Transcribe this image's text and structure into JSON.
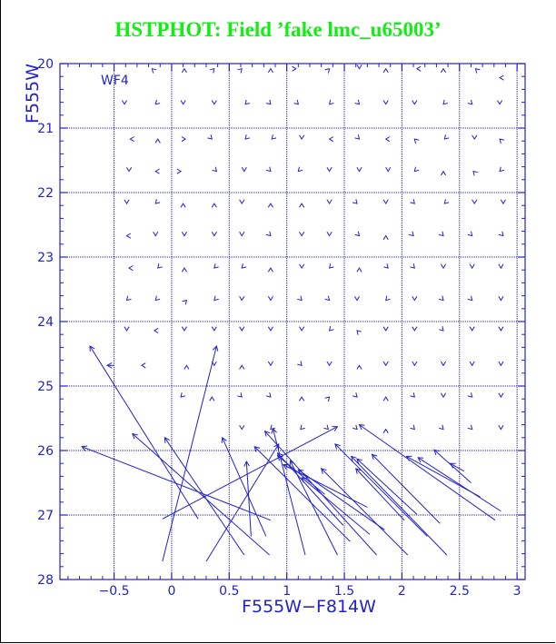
{
  "title": "HSTPHOT: Field ’fake lmc_u65003’",
  "chart_data": {
    "type": "scatter",
    "title": "HSTPHOT: Field ’fake lmc_u65003’",
    "xlabel": "F555W−F814W",
    "ylabel": "F555W",
    "panel_label": "WF4",
    "xlim": [
      -0.97,
      3.07
    ],
    "ylim": [
      28,
      20
    ],
    "xticks": [
      -0.5,
      0,
      0.5,
      1,
      1.5,
      2,
      2.5,
      3
    ],
    "xtick_labels": [
      "−0.5",
      "0",
      "0.5",
      "1",
      "1.5",
      "2",
      "2.5",
      "3"
    ],
    "yticks": [
      20,
      21,
      22,
      23,
      24,
      25,
      26,
      27,
      28
    ],
    "ytick_labels": [
      "20",
      "21",
      "22",
      "23",
      "24",
      "25",
      "26",
      "27",
      "28"
    ],
    "grid": true,
    "colors": {
      "title": "#11ee11",
      "plot": "#2222cc",
      "frame": "#000000"
    },
    "marker": "V-shaped arrowhead at each star's measured position",
    "arrowheads": [
      [
        -0.17,
        20.08,
        "NW"
      ],
      [
        0.11,
        20.08,
        "N"
      ],
      [
        0.37,
        20.08,
        "NE"
      ],
      [
        0.61,
        20.08,
        "NE"
      ],
      [
        0.86,
        20.08,
        "N"
      ],
      [
        1.08,
        20.08,
        "E"
      ],
      [
        1.37,
        20.08,
        "NE"
      ],
      [
        1.63,
        20.08,
        "S"
      ],
      [
        1.86,
        20.08,
        "N"
      ],
      [
        2.13,
        20.08,
        "W"
      ],
      [
        2.36,
        20.08,
        "N"
      ],
      [
        2.64,
        20.08,
        "NW"
      ],
      [
        2.85,
        20.22,
        "W"
      ],
      [
        -0.41,
        20.63,
        "S"
      ],
      [
        -0.14,
        20.63,
        "SW"
      ],
      [
        0.1,
        20.63,
        "S"
      ],
      [
        0.37,
        20.63,
        "S"
      ],
      [
        0.64,
        20.63,
        "SW"
      ],
      [
        0.86,
        20.63,
        "SE"
      ],
      [
        1.1,
        20.63,
        "SE"
      ],
      [
        1.37,
        20.63,
        "SW"
      ],
      [
        1.63,
        20.63,
        "SE"
      ],
      [
        1.86,
        20.63,
        "S"
      ],
      [
        2.11,
        20.63,
        "S"
      ],
      [
        2.36,
        20.63,
        "SW"
      ],
      [
        2.61,
        20.63,
        "SE"
      ],
      [
        2.85,
        20.63,
        "S"
      ],
      [
        -0.36,
        21.17,
        "W"
      ],
      [
        -0.12,
        21.17,
        "N"
      ],
      [
        0.12,
        21.17,
        "E"
      ],
      [
        0.35,
        21.17,
        "SE"
      ],
      [
        0.64,
        21.17,
        "SW"
      ],
      [
        0.87,
        21.17,
        "SW"
      ],
      [
        1.13,
        21.17,
        "S"
      ],
      [
        1.37,
        21.17,
        "W"
      ],
      [
        1.63,
        21.17,
        "SE"
      ],
      [
        1.86,
        21.17,
        "W"
      ],
      [
        2.11,
        21.17,
        "NW"
      ],
      [
        2.37,
        21.17,
        "SW"
      ],
      [
        2.63,
        21.17,
        "S"
      ],
      [
        2.85,
        21.17,
        "NW"
      ],
      [
        -0.37,
        21.67,
        "S"
      ],
      [
        -0.14,
        21.67,
        "W"
      ],
      [
        0.08,
        21.67,
        "E"
      ],
      [
        0.39,
        21.67,
        "SE"
      ],
      [
        0.63,
        21.67,
        "S"
      ],
      [
        0.86,
        21.67,
        "SE"
      ],
      [
        1.1,
        21.67,
        "SW"
      ],
      [
        1.37,
        21.67,
        "S"
      ],
      [
        1.63,
        21.67,
        "S"
      ],
      [
        1.88,
        21.67,
        "S"
      ],
      [
        2.11,
        21.67,
        "SW"
      ],
      [
        2.36,
        21.67,
        "N"
      ],
      [
        2.62,
        21.67,
        "NW"
      ],
      [
        2.85,
        21.67,
        "SW"
      ],
      [
        -0.39,
        22.17,
        "S"
      ],
      [
        -0.14,
        22.17,
        "SW"
      ],
      [
        0.1,
        22.17,
        "N"
      ],
      [
        0.37,
        22.17,
        "N"
      ],
      [
        0.61,
        22.17,
        "S"
      ],
      [
        0.86,
        22.17,
        "N"
      ],
      [
        1.13,
        22.17,
        "N"
      ],
      [
        1.37,
        22.17,
        "S"
      ],
      [
        1.61,
        22.17,
        "SE"
      ],
      [
        1.86,
        22.17,
        "S"
      ],
      [
        2.11,
        22.17,
        "SE"
      ],
      [
        2.37,
        22.17,
        "SW"
      ],
      [
        2.63,
        22.17,
        "S"
      ],
      [
        2.88,
        22.17,
        "S"
      ],
      [
        -0.39,
        22.67,
        "W"
      ],
      [
        -0.14,
        22.67,
        "S"
      ],
      [
        0.11,
        22.67,
        "S"
      ],
      [
        0.37,
        22.67,
        "S"
      ],
      [
        0.61,
        22.67,
        "S"
      ],
      [
        0.86,
        22.67,
        "SE"
      ],
      [
        1.13,
        22.67,
        "S"
      ],
      [
        1.37,
        22.67,
        "S"
      ],
      [
        1.63,
        22.67,
        "SE"
      ],
      [
        1.86,
        22.67,
        "N"
      ],
      [
        2.1,
        22.67,
        "SE"
      ],
      [
        2.36,
        22.67,
        "SE"
      ],
      [
        2.61,
        22.67,
        "SE"
      ],
      [
        2.88,
        22.67,
        "SE"
      ],
      [
        -0.37,
        23.17,
        "W"
      ],
      [
        -0.12,
        23.17,
        "SW"
      ],
      [
        0.11,
        23.17,
        "N"
      ],
      [
        0.37,
        23.17,
        "SW"
      ],
      [
        0.61,
        23.17,
        "SW"
      ],
      [
        0.86,
        23.17,
        "N"
      ],
      [
        1.13,
        23.17,
        "S"
      ],
      [
        1.37,
        23.17,
        "SW"
      ],
      [
        1.63,
        23.17,
        "N"
      ],
      [
        1.88,
        23.17,
        "SE"
      ],
      [
        2.11,
        23.17,
        "SE"
      ],
      [
        2.36,
        23.17,
        "S"
      ],
      [
        2.61,
        23.17,
        "S"
      ],
      [
        2.86,
        23.17,
        "S"
      ],
      [
        -0.39,
        23.67,
        "SW"
      ],
      [
        -0.14,
        23.67,
        "SW"
      ],
      [
        0.13,
        23.67,
        "NE"
      ],
      [
        0.37,
        23.67,
        "SW"
      ],
      [
        0.61,
        23.67,
        "S"
      ],
      [
        0.86,
        23.67,
        "S"
      ],
      [
        1.13,
        23.67,
        "SE"
      ],
      [
        1.37,
        23.67,
        "SE"
      ],
      [
        1.61,
        23.67,
        "S"
      ],
      [
        1.86,
        23.67,
        "SW"
      ],
      [
        2.11,
        23.67,
        "S"
      ],
      [
        2.36,
        23.67,
        "SE"
      ],
      [
        2.61,
        23.67,
        "SE"
      ],
      [
        2.86,
        23.67,
        "S"
      ],
      [
        -0.39,
        24.14,
        "S"
      ],
      [
        -0.15,
        24.14,
        "W"
      ],
      [
        0.11,
        24.14,
        "S"
      ],
      [
        0.37,
        24.14,
        "S"
      ],
      [
        0.61,
        24.14,
        "S"
      ],
      [
        0.86,
        24.14,
        "S"
      ],
      [
        1.13,
        24.14,
        "S"
      ],
      [
        1.37,
        24.14,
        "SW"
      ],
      [
        1.61,
        24.14,
        "NW"
      ],
      [
        1.86,
        24.14,
        "S"
      ],
      [
        2.11,
        24.14,
        "S"
      ],
      [
        2.36,
        24.14,
        "SE"
      ],
      [
        2.61,
        24.14,
        "S"
      ],
      [
        2.86,
        24.14,
        "S"
      ],
      [
        -0.26,
        24.68,
        "W"
      ],
      [
        0.13,
        24.68,
        "N"
      ],
      [
        0.37,
        24.68,
        "S"
      ],
      [
        0.61,
        24.68,
        "N"
      ],
      [
        0.86,
        24.68,
        "S"
      ],
      [
        1.13,
        24.68,
        "SE"
      ],
      [
        1.37,
        24.68,
        "S"
      ],
      [
        1.63,
        24.68,
        "N"
      ],
      [
        1.86,
        24.68,
        "S"
      ],
      [
        2.11,
        24.68,
        "S"
      ],
      [
        2.36,
        24.68,
        "S"
      ],
      [
        2.61,
        24.68,
        "S"
      ],
      [
        2.86,
        24.68,
        "S"
      ],
      [
        0.08,
        25.17,
        "SW"
      ],
      [
        0.35,
        25.17,
        "N"
      ],
      [
        0.61,
        25.17,
        "SE"
      ],
      [
        0.86,
        25.17,
        "SE"
      ],
      [
        1.13,
        25.17,
        "N"
      ],
      [
        1.37,
        25.17,
        "NE"
      ],
      [
        1.61,
        25.17,
        "SE"
      ],
      [
        1.86,
        25.17,
        "N"
      ],
      [
        2.11,
        25.17,
        "SE"
      ],
      [
        2.36,
        25.17,
        "S"
      ],
      [
        2.61,
        25.17,
        "SE"
      ],
      [
        2.86,
        25.17,
        "S"
      ],
      [
        0.61,
        25.67,
        "S"
      ],
      [
        0.86,
        25.67,
        "SW"
      ],
      [
        1.12,
        25.67,
        "SW"
      ],
      [
        1.36,
        25.67,
        "SE"
      ],
      [
        1.61,
        25.67,
        "SE"
      ],
      [
        1.86,
        25.67,
        "N"
      ],
      [
        2.11,
        25.67,
        "SE"
      ],
      [
        2.36,
        25.67,
        "SE"
      ],
      [
        2.61,
        25.67,
        "SE"
      ],
      [
        2.86,
        25.67,
        "S"
      ]
    ],
    "residual_vectors": [
      [
        -0.5,
        24.68,
        -0.56,
        24.68
      ],
      [
        0.86,
        27.08,
        -0.78,
        25.94
      ],
      [
        0.23,
        27.06,
        -0.71,
        24.38
      ],
      [
        0.63,
        27.62,
        -0.06,
        25.8
      ],
      [
        0.85,
        27.62,
        -0.34,
        25.74
      ],
      [
        -0.08,
        27.72,
        0.39,
        24.38
      ],
      [
        -0.08,
        27.06,
        1.44,
        25.63
      ],
      [
        0.3,
        27.72,
        0.93,
        25.9
      ],
      [
        0.82,
        27.33,
        0.44,
        25.8
      ],
      [
        1.16,
        27.62,
        0.88,
        25.66
      ],
      [
        1.78,
        27.62,
        0.81,
        25.7
      ],
      [
        2.81,
        27.08,
        1.63,
        25.6
      ],
      [
        2.68,
        26.72,
        2.04,
        26.09
      ],
      [
        2.22,
        27.33,
        1.42,
        25.9
      ],
      [
        2.39,
        27.62,
        1.56,
        26.09
      ],
      [
        2.05,
        27.62,
        1.3,
        26.28
      ],
      [
        1.44,
        27.62,
        1.03,
        26.16
      ],
      [
        2.86,
        26.94,
        2.14,
        26.11
      ],
      [
        1.72,
        27.3,
        1.13,
        26.42
      ],
      [
        0.69,
        27.33,
        0.65,
        26.17
      ],
      [
        2.6,
        26.5,
        2.28,
        25.99
      ],
      [
        1.55,
        27.41,
        0.72,
        25.94
      ],
      [
        2.54,
        26.32,
        2.42,
        26.2
      ],
      [
        2.13,
        26.99,
        1.61,
        26.13
      ],
      [
        2.33,
        27.13,
        1.74,
        26.06
      ],
      [
        1.85,
        27.23,
        1.1,
        26.3
      ],
      [
        1.7,
        26.88,
        0.97,
        26.22
      ],
      [
        1.49,
        27.16,
        0.92,
        26.04
      ],
      [
        2.02,
        27.08,
        1.6,
        26.28
      ],
      [
        1.33,
        26.68,
        0.92,
        26.08
      ]
    ]
  }
}
